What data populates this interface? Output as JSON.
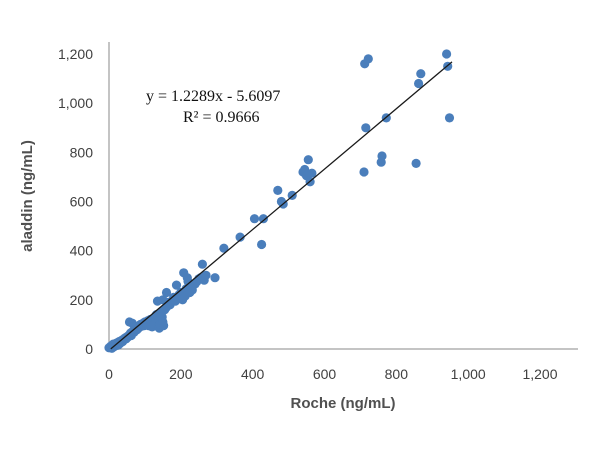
{
  "chart_data": {
    "type": "scatter",
    "xlabel": "Roche (ng/mL)",
    "ylabel": "aladdin (ng/mL)",
    "xlim": [
      0,
      1200
    ],
    "ylim": [
      0,
      1200
    ],
    "x_ticks": [
      "0",
      "200",
      "400",
      "600",
      "800",
      "1,000",
      "1,200"
    ],
    "y_ticks": [
      "0",
      "200",
      "400",
      "600",
      "800",
      "1,000",
      "1,200"
    ],
    "x_tick_values": [
      0,
      200,
      400,
      600,
      800,
      1000,
      1200
    ],
    "y_tick_values": [
      0,
      200,
      400,
      600,
      800,
      1000,
      1200
    ],
    "grid": false,
    "marker_color": "#4a7ebb",
    "trendline": {
      "color": "#1a1a1a",
      "slope": 1.2289,
      "intercept": -5.6097,
      "x_range": [
        5,
        955
      ],
      "equation": "y = 1.2289x - 5.6097",
      "r2": "R² = 0.9666"
    },
    "points": [
      [
        0,
        5
      ],
      [
        3,
        8
      ],
      [
        5,
        12
      ],
      [
        8,
        3
      ],
      [
        10,
        15
      ],
      [
        12,
        20
      ],
      [
        15,
        10
      ],
      [
        18,
        22
      ],
      [
        20,
        18
      ],
      [
        22,
        25
      ],
      [
        25,
        15
      ],
      [
        28,
        30
      ],
      [
        30,
        22
      ],
      [
        32,
        28
      ],
      [
        35,
        35
      ],
      [
        38,
        30
      ],
      [
        40,
        40
      ],
      [
        42,
        38
      ],
      [
        45,
        45
      ],
      [
        48,
        42
      ],
      [
        50,
        50
      ],
      [
        52,
        48
      ],
      [
        55,
        55
      ],
      [
        58,
        60
      ],
      [
        60,
        65
      ],
      [
        62,
        55
      ],
      [
        65,
        70
      ],
      [
        68,
        75
      ],
      [
        70,
        68
      ],
      [
        72,
        80
      ],
      [
        75,
        85
      ],
      [
        78,
        78
      ],
      [
        80,
        90
      ],
      [
        82,
        85
      ],
      [
        85,
        95
      ],
      [
        88,
        100
      ],
      [
        90,
        92
      ],
      [
        95,
        105
      ],
      [
        98,
        95
      ],
      [
        100,
        110
      ],
      [
        105,
        100
      ],
      [
        108,
        115
      ],
      [
        110,
        95
      ],
      [
        115,
        120
      ],
      [
        118,
        110
      ],
      [
        120,
        90
      ],
      [
        125,
        100
      ],
      [
        128,
        130
      ],
      [
        130,
        120
      ],
      [
        132,
        140
      ],
      [
        135,
        110
      ],
      [
        138,
        95
      ],
      [
        140,
        85
      ],
      [
        142,
        100
      ],
      [
        145,
        150
      ],
      [
        148,
        130
      ],
      [
        150,
        110
      ],
      [
        152,
        95
      ],
      [
        155,
        160
      ],
      [
        160,
        170
      ],
      [
        57,
        110
      ],
      [
        65,
        105
      ],
      [
        135,
        195
      ],
      [
        150,
        200
      ],
      [
        160,
        230
      ],
      [
        165,
        190
      ],
      [
        170,
        180
      ],
      [
        180,
        210
      ],
      [
        185,
        195
      ],
      [
        188,
        260
      ],
      [
        195,
        220
      ],
      [
        200,
        230
      ],
      [
        205,
        200
      ],
      [
        208,
        310
      ],
      [
        212,
        215
      ],
      [
        215,
        245
      ],
      [
        218,
        290
      ],
      [
        220,
        275
      ],
      [
        225,
        230
      ],
      [
        228,
        250
      ],
      [
        232,
        240
      ],
      [
        235,
        260
      ],
      [
        240,
        265
      ],
      [
        245,
        275
      ],
      [
        250,
        285
      ],
      [
        255,
        290
      ],
      [
        260,
        345
      ],
      [
        265,
        280
      ],
      [
        270,
        300
      ],
      [
        295,
        290
      ],
      [
        320,
        410
      ],
      [
        365,
        455
      ],
      [
        405,
        530
      ],
      [
        425,
        425
      ],
      [
        430,
        530
      ],
      [
        470,
        645
      ],
      [
        480,
        600
      ],
      [
        485,
        590
      ],
      [
        510,
        625
      ],
      [
        540,
        720
      ],
      [
        545,
        730
      ],
      [
        550,
        705
      ],
      [
        555,
        770
      ],
      [
        560,
        680
      ],
      [
        565,
        715
      ],
      [
        710,
        720
      ],
      [
        712,
        1160
      ],
      [
        715,
        900
      ],
      [
        722,
        1180
      ],
      [
        758,
        760
      ],
      [
        760,
        785
      ],
      [
        772,
        940
      ],
      [
        855,
        755
      ],
      [
        862,
        1080
      ],
      [
        868,
        1120
      ],
      [
        940,
        1200
      ],
      [
        943,
        1150
      ],
      [
        948,
        940
      ]
    ]
  }
}
